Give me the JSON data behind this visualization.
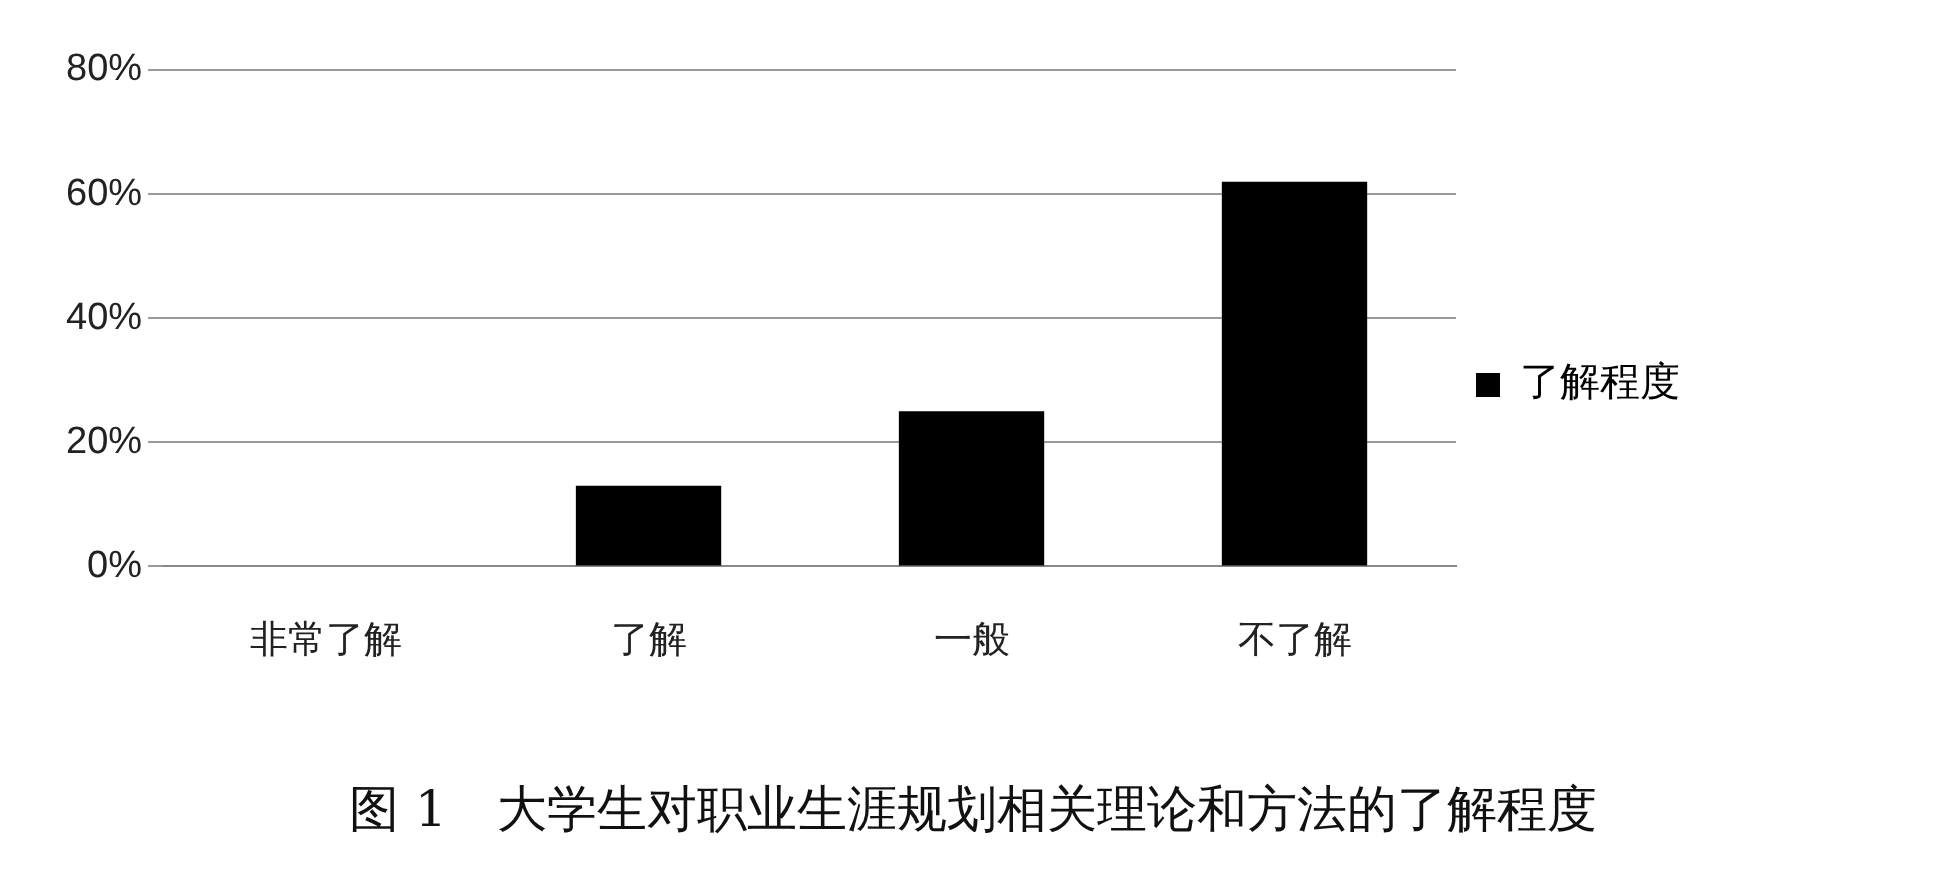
{
  "chart_data": {
    "type": "bar",
    "title": "图 1　大学生对职业生涯规划相关理论和方法的了解程度",
    "categories": [
      "非常了解",
      "了解",
      "一般",
      "不了解"
    ],
    "series": [
      {
        "name": "了解程度",
        "color": "#000000",
        "values": [
          0,
          13,
          25,
          62
        ]
      }
    ],
    "ylim": [
      0,
      80
    ],
    "yticks": [
      {
        "value": 0,
        "label": "0%"
      },
      {
        "value": 20,
        "label": "20%"
      },
      {
        "value": 40,
        "label": "40%"
      },
      {
        "value": 60,
        "label": "60%"
      },
      {
        "value": 80,
        "label": "80%"
      }
    ],
    "grid": "y",
    "legend": "right"
  }
}
